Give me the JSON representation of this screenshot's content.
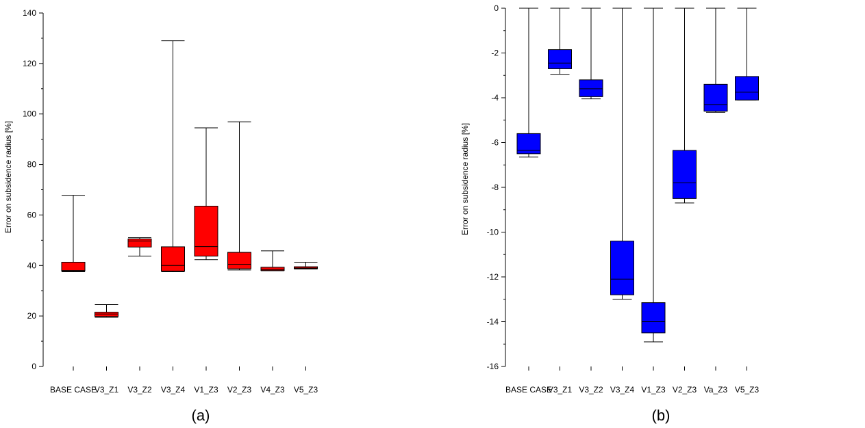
{
  "chart_data": [
    {
      "type": "box",
      "caption": "(a)",
      "ylabel": "Error on subsidence radius [%]",
      "xlabel": "",
      "ylim": [
        0,
        140
      ],
      "yticks": [
        0,
        20,
        40,
        60,
        80,
        100,
        120,
        140
      ],
      "categories": [
        "BASE CASE",
        "V3_Z1",
        "V3_Z2",
        "V3_Z4",
        "V1_Z3",
        "V2_Z3",
        "V4_Z3",
        "V5_Z3"
      ],
      "box_color": "#ff0000",
      "boxes": [
        {
          "min": 37.5,
          "q1": 37.8,
          "median": 38.0,
          "q3": 41.3,
          "max": 67.8
        },
        {
          "min": 19.5,
          "q1": 19.8,
          "median": 20.8,
          "q3": 21.5,
          "max": 24.5
        },
        {
          "min": 43.7,
          "q1": 47.3,
          "median": 49.7,
          "q3": 50.5,
          "max": 51.0
        },
        {
          "min": 37.5,
          "q1": 37.8,
          "median": 40.0,
          "q3": 47.4,
          "max": 129.0
        },
        {
          "min": 42.3,
          "q1": 43.7,
          "median": 47.5,
          "q3": 63.5,
          "max": 94.5
        },
        {
          "min": 38.2,
          "q1": 38.7,
          "median": 40.5,
          "q3": 45.2,
          "max": 96.9
        },
        {
          "min": 37.9,
          "q1": 38.0,
          "median": 38.4,
          "q3": 39.3,
          "max": 45.8
        },
        {
          "min": 38.6,
          "q1": 38.7,
          "median": 39.0,
          "q3": 39.5,
          "max": 41.3
        }
      ]
    },
    {
      "type": "box",
      "caption": "(b)",
      "ylabel": "Error on subsidence radius [%]",
      "xlabel": "",
      "ylim": [
        -16,
        0
      ],
      "yticks": [
        0,
        -2,
        -4,
        -6,
        -8,
        -10,
        -12,
        -14,
        -16
      ],
      "categories": [
        "BASE CASE",
        "V3_Z1",
        "V3_Z2",
        "V3_Z4",
        "V1_Z3",
        "V2_Z3",
        "Va_Z3",
        "V5_Z3"
      ],
      "box_color": "#0000ff",
      "boxes": [
        {
          "min": -6.65,
          "q1": -6.5,
          "median": -6.35,
          "q3": -5.6,
          "max": 0
        },
        {
          "min": -2.95,
          "q1": -2.7,
          "median": -2.45,
          "q3": -1.85,
          "max": 0
        },
        {
          "min": -4.05,
          "q1": -3.95,
          "median": -3.6,
          "q3": -3.2,
          "max": 0
        },
        {
          "min": -13.0,
          "q1": -12.8,
          "median": -12.1,
          "q3": -10.4,
          "max": 0
        },
        {
          "min": -14.9,
          "q1": -14.5,
          "median": -14.0,
          "q3": -13.15,
          "max": 0
        },
        {
          "min": -8.7,
          "q1": -8.5,
          "median": -7.8,
          "q3": -6.35,
          "max": 0
        },
        {
          "min": -4.65,
          "q1": -4.6,
          "median": -4.3,
          "q3": -3.4,
          "max": 0
        },
        {
          "min": -4.1,
          "q1": -4.1,
          "median": -3.75,
          "q3": -3.05,
          "max": 0
        }
      ]
    }
  ]
}
